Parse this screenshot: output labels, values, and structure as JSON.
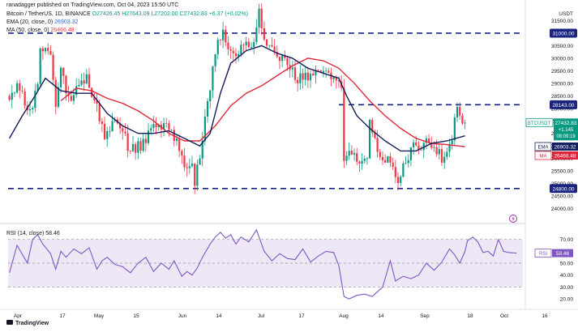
{
  "header": {
    "author": "ranadagger published on TradingView.com, Oct 04, 2023 15:50 UTC",
    "symbol": "Bitcoin / TetherUS, 1D, BINANCE",
    "ohlc": "O27426.45 H27643.09 L27202.00 C27432.83 +6.37 (+0.02%)",
    "ema_legend": "EMA (20, close, 0)",
    "ema_value": "26903.32",
    "ma_legend": "MA (50, close, 0)",
    "ma_value": "26466.48",
    "rsi_legend": "RSI (14, close) 58.46"
  },
  "footer": {
    "brand": "TradingView"
  },
  "colors": {
    "up": "#089981",
    "down": "#f23645",
    "ema": "#131e5c",
    "ma": "#e0263a",
    "level": "#1a237e",
    "rsi": "#7e57c2",
    "rsi_band": "#ede7f6"
  },
  "chart_data": [
    {
      "type": "candlestick",
      "title": "Bitcoin / TetherUS, 1D, BINANCE",
      "currency": "USDT",
      "ylim": [
        23500,
        32000
      ],
      "yticks": [
        "31500.00",
        "30500.00",
        "30000.00",
        "29500.00",
        "29000.00",
        "28500.00",
        "28000.00",
        "27500.00",
        "27000.00",
        "26500.00",
        "26000.00",
        "25500.00",
        "25000.00",
        "24500.00",
        "24000.00"
      ],
      "x_labels": [
        "Apr",
        "17",
        "May",
        "15",
        "Jun",
        "14",
        "Jul",
        "17",
        "Aug",
        "14",
        "Sep",
        "18",
        "Oct",
        "16"
      ],
      "horizontal_levels": [
        {
          "value": 31000,
          "label": "31000.00",
          "extent": "full"
        },
        {
          "value": 28143,
          "label": "28143.00",
          "extent": "aug-onward"
        },
        {
          "value": 24800,
          "label": "24800.00",
          "extent": "full"
        }
      ],
      "price_labels": [
        {
          "label": "BTCUSDT",
          "value": "27432.83",
          "change": "+1.145",
          "countdown": "08:09:19"
        },
        {
          "label": "EMA",
          "value": "26903.32"
        },
        {
          "label": "MA",
          "value": "26466.48"
        }
      ],
      "anchors": [
        [
          0,
          28500
        ],
        [
          4,
          28900
        ],
        [
          8,
          27800
        ],
        [
          11,
          29100
        ],
        [
          12,
          30400
        ],
        [
          16,
          30000
        ],
        [
          18,
          28200
        ],
        [
          20,
          29400
        ],
        [
          23,
          28400
        ],
        [
          27,
          28900
        ],
        [
          30,
          29300
        ],
        [
          34,
          28000
        ],
        [
          37,
          27000
        ],
        [
          41,
          27500
        ],
        [
          43,
          27300
        ],
        [
          47,
          26300
        ],
        [
          51,
          26500
        ],
        [
          54,
          27000
        ],
        [
          58,
          27300
        ],
        [
          63,
          27200
        ],
        [
          66,
          26300
        ],
        [
          68,
          25800
        ],
        [
          71,
          25700
        ],
        [
          72,
          24900
        ],
        [
          75,
          26900
        ],
        [
          78,
          28800
        ],
        [
          80,
          30300
        ],
        [
          83,
          30900
        ],
        [
          88,
          30100
        ],
        [
          91,
          30700
        ],
        [
          94,
          30300
        ],
        [
          97,
          31800
        ],
        [
          99,
          30500
        ],
        [
          102,
          30300
        ],
        [
          106,
          30000
        ],
        [
          112,
          29200
        ],
        [
          117,
          29200
        ],
        [
          121,
          29600
        ],
        [
          125,
          29200
        ],
        [
          126,
          29100
        ],
        [
          129,
          28700
        ],
        [
          130,
          26000
        ],
        [
          133,
          26100
        ],
        [
          136,
          26000
        ],
        [
          139,
          25900
        ],
        [
          140,
          27600
        ],
        [
          143,
          26100
        ],
        [
          146,
          25900
        ],
        [
          149,
          25700
        ],
        [
          151,
          25200
        ],
        [
          154,
          25900
        ],
        [
          157,
          26600
        ],
        [
          160,
          26500
        ],
        [
          163,
          26800
        ],
        [
          166,
          26200
        ],
        [
          169,
          26000
        ],
        [
          172,
          26800
        ],
        [
          173,
          27800
        ],
        [
          174,
          28000
        ],
        [
          176,
          27500
        ],
        [
          177,
          27433
        ]
      ],
      "ema_20": [
        [
          0,
          26800
        ],
        [
          5,
          27700
        ],
        [
          10,
          28500
        ],
        [
          14,
          29200
        ],
        [
          20,
          28700
        ],
        [
          26,
          28600
        ],
        [
          32,
          28600
        ],
        [
          38,
          27800
        ],
        [
          44,
          27300
        ],
        [
          50,
          27000
        ],
        [
          56,
          27000
        ],
        [
          62,
          27100
        ],
        [
          68,
          26800
        ],
        [
          74,
          26500
        ],
        [
          78,
          27000
        ],
        [
          82,
          28600
        ],
        [
          86,
          29800
        ],
        [
          92,
          30300
        ],
        [
          98,
          30500
        ],
        [
          104,
          30200
        ],
        [
          110,
          30000
        ],
        [
          116,
          29600
        ],
        [
          122,
          29400
        ],
        [
          128,
          29200
        ],
        [
          131,
          28500
        ],
        [
          135,
          27700
        ],
        [
          140,
          27200
        ],
        [
          146,
          26700
        ],
        [
          152,
          26300
        ],
        [
          158,
          26300
        ],
        [
          164,
          26600
        ],
        [
          170,
          26700
        ],
        [
          177,
          26903
        ]
      ],
      "ma_50": [
        [
          20,
          28300
        ],
        [
          26,
          28800
        ],
        [
          32,
          28700
        ],
        [
          38,
          28400
        ],
        [
          44,
          28200
        ],
        [
          50,
          27900
        ],
        [
          56,
          27500
        ],
        [
          62,
          27000
        ],
        [
          68,
          26700
        ],
        [
          74,
          26700
        ],
        [
          80,
          27300
        ],
        [
          86,
          28100
        ],
        [
          92,
          28600
        ],
        [
          98,
          28900
        ],
        [
          104,
          29300
        ],
        [
          110,
          29700
        ],
        [
          116,
          30000
        ],
        [
          122,
          29900
        ],
        [
          128,
          29600
        ],
        [
          134,
          29000
        ],
        [
          140,
          28300
        ],
        [
          146,
          27700
        ],
        [
          152,
          27200
        ],
        [
          158,
          26800
        ],
        [
          164,
          26600
        ],
        [
          170,
          26550
        ],
        [
          177,
          26466
        ]
      ]
    },
    {
      "type": "line",
      "title": "RSI (14, close)",
      "value": "58.46",
      "ylim": [
        18,
        80
      ],
      "yticks": [
        "70.00",
        "50.00",
        "40.00",
        "30.00",
        "20.00"
      ],
      "band": [
        30,
        70
      ],
      "anchors": [
        [
          0,
          42
        ],
        [
          3,
          65
        ],
        [
          7,
          50
        ],
        [
          9,
          70
        ],
        [
          11,
          74
        ],
        [
          13,
          66
        ],
        [
          16,
          58
        ],
        [
          18,
          45
        ],
        [
          20,
          60
        ],
        [
          22,
          55
        ],
        [
          25,
          62
        ],
        [
          28,
          58
        ],
        [
          31,
          63
        ],
        [
          34,
          45
        ],
        [
          36,
          52
        ],
        [
          38,
          55
        ],
        [
          41,
          49
        ],
        [
          44,
          47
        ],
        [
          47,
          42
        ],
        [
          50,
          50
        ],
        [
          53,
          55
        ],
        [
          56,
          43
        ],
        [
          59,
          50
        ],
        [
          62,
          45
        ],
        [
          64,
          52
        ],
        [
          67,
          39
        ],
        [
          69,
          43
        ],
        [
          71,
          40
        ],
        [
          73,
          46
        ],
        [
          75,
          55
        ],
        [
          78,
          66
        ],
        [
          80,
          72
        ],
        [
          82,
          76
        ],
        [
          84,
          71
        ],
        [
          86,
          74
        ],
        [
          88,
          66
        ],
        [
          90,
          72
        ],
        [
          93,
          68
        ],
        [
          96,
          78
        ],
        [
          99,
          60
        ],
        [
          102,
          52
        ],
        [
          105,
          58
        ],
        [
          108,
          54
        ],
        [
          111,
          53
        ],
        [
          114,
          62
        ],
        [
          117,
          51
        ],
        [
          120,
          56
        ],
        [
          123,
          60
        ],
        [
          126,
          59
        ],
        [
          128,
          48
        ],
        [
          130,
          22
        ],
        [
          132,
          20
        ],
        [
          135,
          23
        ],
        [
          138,
          24
        ],
        [
          141,
          22
        ],
        [
          143,
          26
        ],
        [
          145,
          30
        ],
        [
          148,
          52
        ],
        [
          150,
          35
        ],
        [
          153,
          39
        ],
        [
          156,
          37
        ],
        [
          159,
          40
        ],
        [
          162,
          50
        ],
        [
          165,
          44
        ],
        [
          168,
          51
        ],
        [
          171,
          62
        ],
        [
          173,
          57
        ],
        [
          175,
          50
        ],
        [
          177,
          60
        ],
        [
          178,
          69
        ],
        [
          180,
          72
        ],
        [
          182,
          68
        ],
        [
          184,
          59
        ],
        [
          186,
          60
        ],
        [
          188,
          56
        ],
        [
          190,
          70
        ],
        [
          192,
          60
        ],
        [
          194,
          59
        ],
        [
          197,
          58.46
        ]
      ]
    }
  ]
}
